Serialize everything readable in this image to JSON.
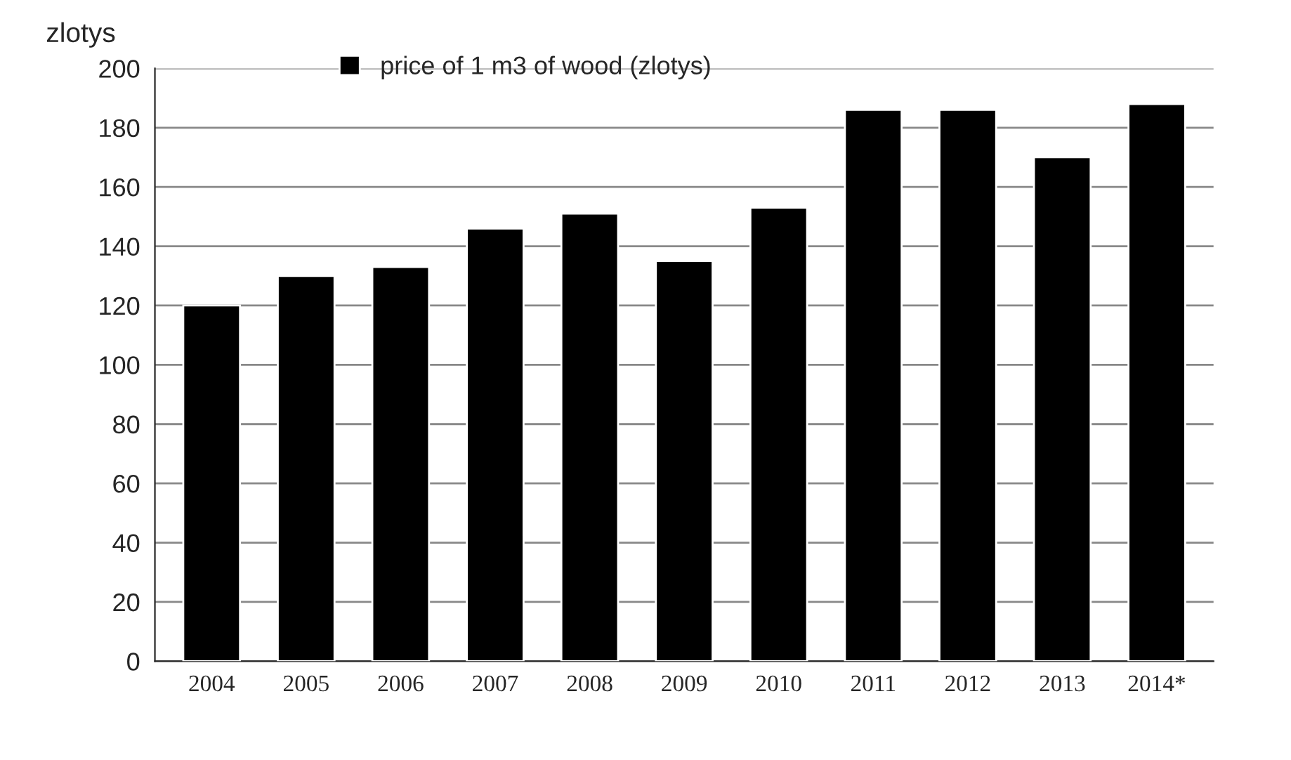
{
  "chart_data": {
    "type": "bar",
    "ylabel": "zlotys",
    "categories": [
      "2004",
      "2005",
      "2006",
      "2007",
      "2008",
      "2009",
      "2010",
      "2011",
      "2012",
      "2013",
      "2014*"
    ],
    "series": [
      {
        "name": "price of 1 m3 of wood (zlotys)",
        "color": "#000000",
        "values": [
          120,
          130,
          133,
          146,
          151,
          135,
          153,
          186,
          186,
          170,
          188
        ]
      }
    ],
    "ylim": [
      0,
      200
    ],
    "yticks": [
      0,
      20,
      40,
      60,
      80,
      100,
      120,
      140,
      160,
      180,
      200
    ],
    "grid": "y",
    "legend": "top"
  }
}
